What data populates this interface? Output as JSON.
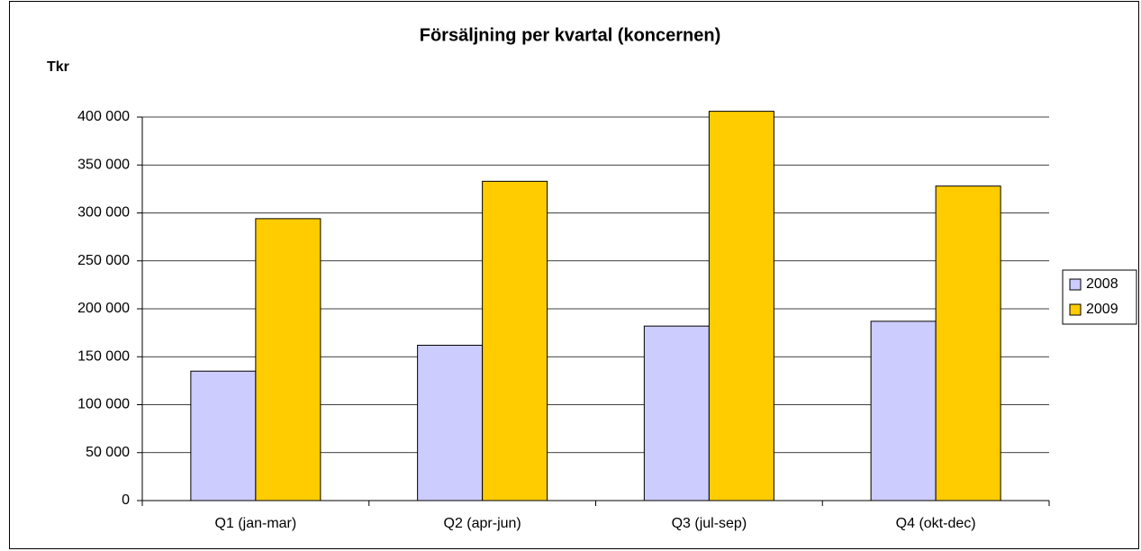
{
  "chart_data": {
    "type": "bar",
    "title": "Försäljning per kvartal (koncernen)",
    "y_label": "Tkr",
    "categories": [
      "Q1 (jan-mar)",
      "Q2 (apr-jun)",
      "Q3 (jul-sep)",
      "Q4 (okt-dec)"
    ],
    "series": [
      {
        "name": "2008",
        "color": "#ccccff",
        "values": [
          135000,
          162000,
          182000,
          187000
        ]
      },
      {
        "name": "2009",
        "color": "#ffcc00",
        "values": [
          294000,
          333000,
          406000,
          328000
        ]
      }
    ],
    "ylim": [
      0,
      400000
    ],
    "yticks": [
      0,
      {
        "value": 50000,
        "label": "50 000"
      },
      {
        "value": 100000,
        "label": "100 000"
      },
      {
        "value": 150000,
        "label": "150 000"
      },
      {
        "value": 200000,
        "label": "200 000"
      },
      {
        "value": 250000,
        "label": "250 000"
      },
      {
        "value": 300000,
        "label": "300 000"
      },
      {
        "value": 350000,
        "label": "350 000"
      },
      {
        "value": 400000,
        "label": "400 000"
      }
    ],
    "grid": true,
    "legend": "right"
  }
}
